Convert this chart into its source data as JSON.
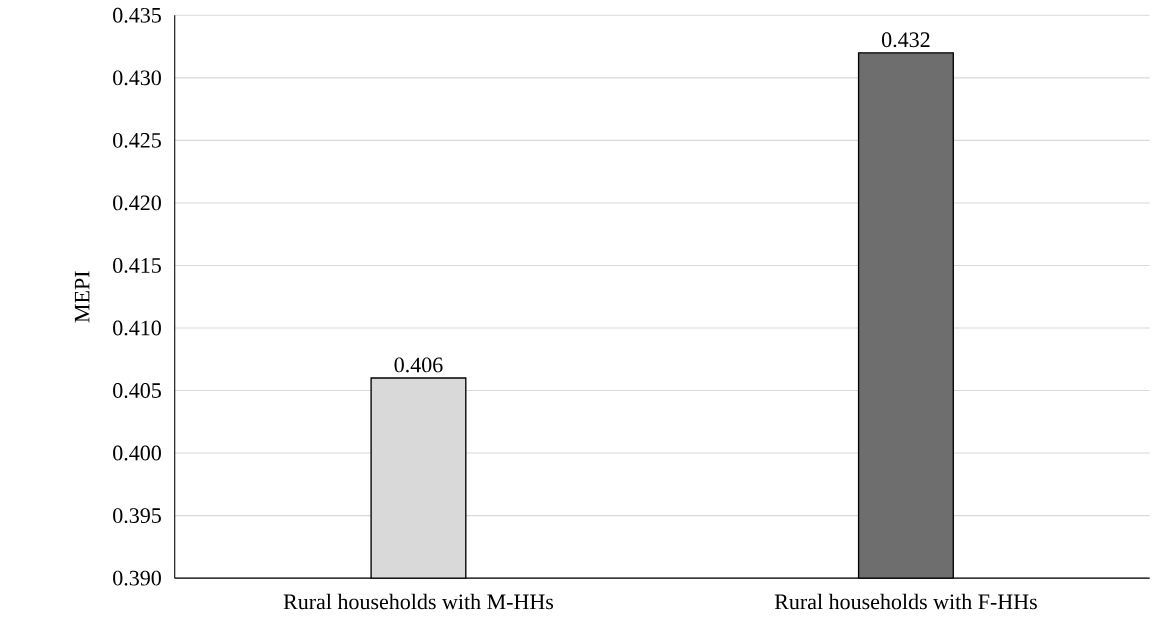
{
  "chart_data": {
    "type": "bar",
    "ylabel": "MEPI",
    "categories": [
      "Rural households with M-HHs",
      "Rural households with F-HHs"
    ],
    "values": [
      0.406,
      0.432
    ],
    "value_labels": [
      "0.406",
      "0.432"
    ],
    "colors": [
      "#d9d9d9",
      "#6e6e6e"
    ],
    "ylim": [
      0.39,
      0.435
    ],
    "yticks": [
      {
        "value": 0.39,
        "label": "0.390"
      },
      {
        "value": 0.395,
        "label": "0.395"
      },
      {
        "value": 0.4,
        "label": "0.400"
      },
      {
        "value": 0.405,
        "label": "0.405"
      },
      {
        "value": 0.41,
        "label": "0.410"
      },
      {
        "value": 0.415,
        "label": "0.415"
      },
      {
        "value": 0.42,
        "label": "0.420"
      },
      {
        "value": 0.425,
        "label": "0.425"
      },
      {
        "value": 0.43,
        "label": "0.430"
      },
      {
        "value": 0.435,
        "label": "0.435"
      }
    ],
    "grid": "y"
  }
}
